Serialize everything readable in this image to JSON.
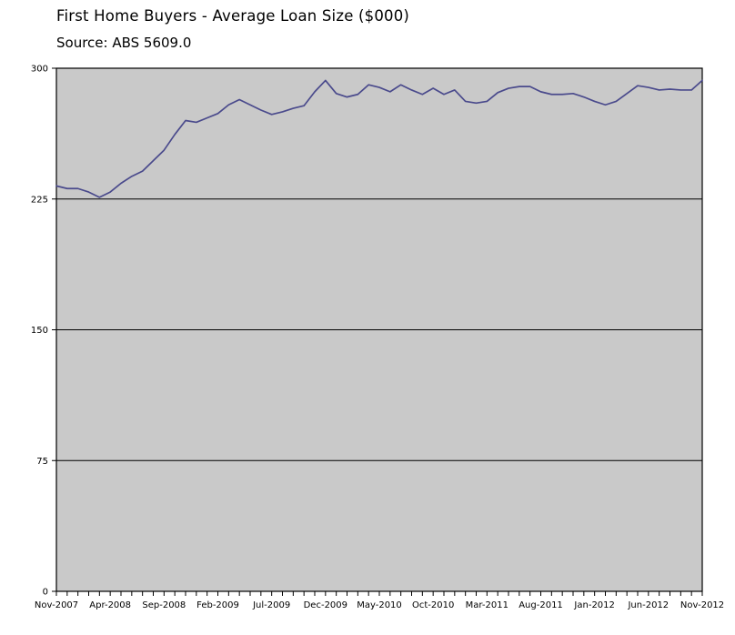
{
  "page": {
    "title": "First Home Buyers - Average Loan Size ($000)",
    "subtitle": "Source: ABS 5609.0"
  },
  "chart_data": {
    "type": "line",
    "title": "First Home Buyers - Average Loan Size ($000)",
    "subtitle": "Source: ABS 5609.0",
    "series_name": "Average loan size ($000)",
    "x": [
      "Nov-2007",
      "Dec-2007",
      "Jan-2008",
      "Feb-2008",
      "Mar-2008",
      "Apr-2008",
      "May-2008",
      "Jun-2008",
      "Jul-2008",
      "Aug-2008",
      "Sep-2008",
      "Oct-2008",
      "Nov-2008",
      "Dec-2008",
      "Jan-2009",
      "Feb-2009",
      "Mar-2009",
      "Apr-2009",
      "May-2009",
      "Jun-2009",
      "Jul-2009",
      "Aug-2009",
      "Sep-2009",
      "Oct-2009",
      "Nov-2009",
      "Dec-2009",
      "Jan-2010",
      "Feb-2010",
      "Mar-2010",
      "Apr-2010",
      "May-2010",
      "Jun-2010",
      "Jul-2010",
      "Aug-2010",
      "Sep-2010",
      "Oct-2010",
      "Nov-2010",
      "Dec-2010",
      "Jan-2011",
      "Feb-2011",
      "Mar-2011",
      "Apr-2011",
      "May-2011",
      "Jun-2011",
      "Jul-2011",
      "Aug-2011",
      "Sep-2011",
      "Oct-2011",
      "Nov-2011",
      "Dec-2011",
      "Jan-2012",
      "Feb-2012",
      "Mar-2012",
      "Apr-2012",
      "May-2012",
      "Jun-2012",
      "Jul-2012",
      "Aug-2012",
      "Sep-2012",
      "Oct-2012",
      "Nov-2012"
    ],
    "values": [
      232.5,
      231,
      231,
      229,
      226,
      229,
      234,
      238,
      241,
      247,
      253,
      262,
      270,
      269,
      271.5,
      274,
      279,
      282,
      279,
      276,
      273.5,
      275,
      277,
      278.5,
      286.5,
      293,
      285.5,
      283.5,
      285,
      290.5,
      289,
      286.5,
      290.5,
      287.5,
      285,
      288.5,
      285,
      287.5,
      281,
      280,
      281,
      286,
      288.5,
      289.5,
      289.5,
      286.5,
      285,
      285,
      285.5,
      283.5,
      281,
      279,
      281,
      285.5,
      290,
      289,
      287.5,
      288,
      287.5,
      287.5,
      293
    ],
    "x_tick_labels_shown": [
      "Nov-2007",
      "Apr-2008",
      "Sep-2008",
      "Feb-2009",
      "Jul-2009",
      "Dec-2009",
      "May-2010",
      "Oct-2010",
      "Mar-2011",
      "Aug-2011",
      "Jan-2012",
      "Jun-2012",
      "Nov-2012"
    ],
    "x_label_every": 5,
    "ylim": [
      0,
      300
    ],
    "yticks": [
      0,
      75,
      150,
      225,
      300
    ],
    "grid": "horizontal gridlines at 75, 150, 225",
    "legend": "none",
    "colors": {
      "line": "#4a4a8c",
      "plot_bg": "#c9c9c9",
      "grid": "#000000",
      "border": "#000000",
      "text": "#000000",
      "page_bg": "#ffffff"
    }
  }
}
